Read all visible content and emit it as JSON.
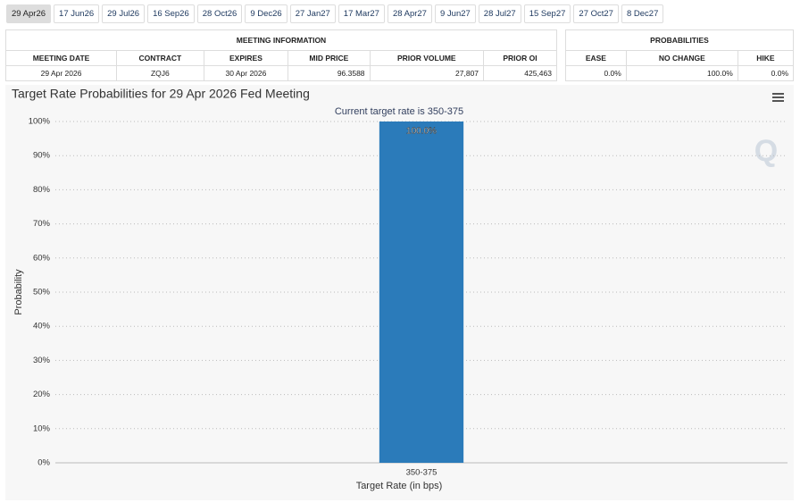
{
  "tabs": [
    "29 Apr26",
    "17 Jun26",
    "29 Jul26",
    "16 Sep26",
    "28 Oct26",
    "9 Dec26",
    "27 Jan27",
    "17 Mar27",
    "28 Apr27",
    "9 Jun27",
    "28 Jul27",
    "15 Sep27",
    "27 Oct27",
    "8 Dec27"
  ],
  "meeting_info": {
    "title": "MEETING INFORMATION",
    "headers": [
      "MEETING DATE",
      "CONTRACT",
      "EXPIRES",
      "MID PRICE",
      "PRIOR VOLUME",
      "PRIOR OI"
    ],
    "rows": [
      [
        "29 Apr 2026",
        "ZQJ6",
        "30 Apr 2026",
        "96.3588",
        "27,807",
        "425,463"
      ]
    ]
  },
  "probabilities": {
    "title": "PROBABILITIES",
    "headers": [
      "EASE",
      "NO CHANGE",
      "HIKE"
    ],
    "rows": [
      [
        "0.0%",
        "100.0%",
        "0.0%"
      ]
    ]
  },
  "chart_data": {
    "type": "bar",
    "title": "Target Rate Probabilities for 29 Apr 2026 Fed Meeting",
    "subtitle": "Current target rate is 350-375",
    "x_label": "Target Rate (in bps)",
    "y_label": "Probability",
    "categories": [
      "350-375"
    ],
    "values": [
      100.0
    ],
    "value_labels": [
      "100.0%"
    ],
    "color": "#2b7bba",
    "ylim": [
      0,
      100
    ],
    "yticks": [
      {
        "value": 0,
        "label": "0%"
      },
      {
        "value": 10,
        "label": "10%"
      },
      {
        "value": 20,
        "label": "20%"
      },
      {
        "value": 30,
        "label": "30%"
      },
      {
        "value": 40,
        "label": "40%"
      },
      {
        "value": 50,
        "label": "50%"
      },
      {
        "value": 60,
        "label": "60%"
      },
      {
        "value": 70,
        "label": "70%"
      },
      {
        "value": 80,
        "label": "80%"
      },
      {
        "value": 90,
        "label": "90%"
      },
      {
        "value": 100,
        "label": "100%"
      }
    ],
    "grid": true
  }
}
